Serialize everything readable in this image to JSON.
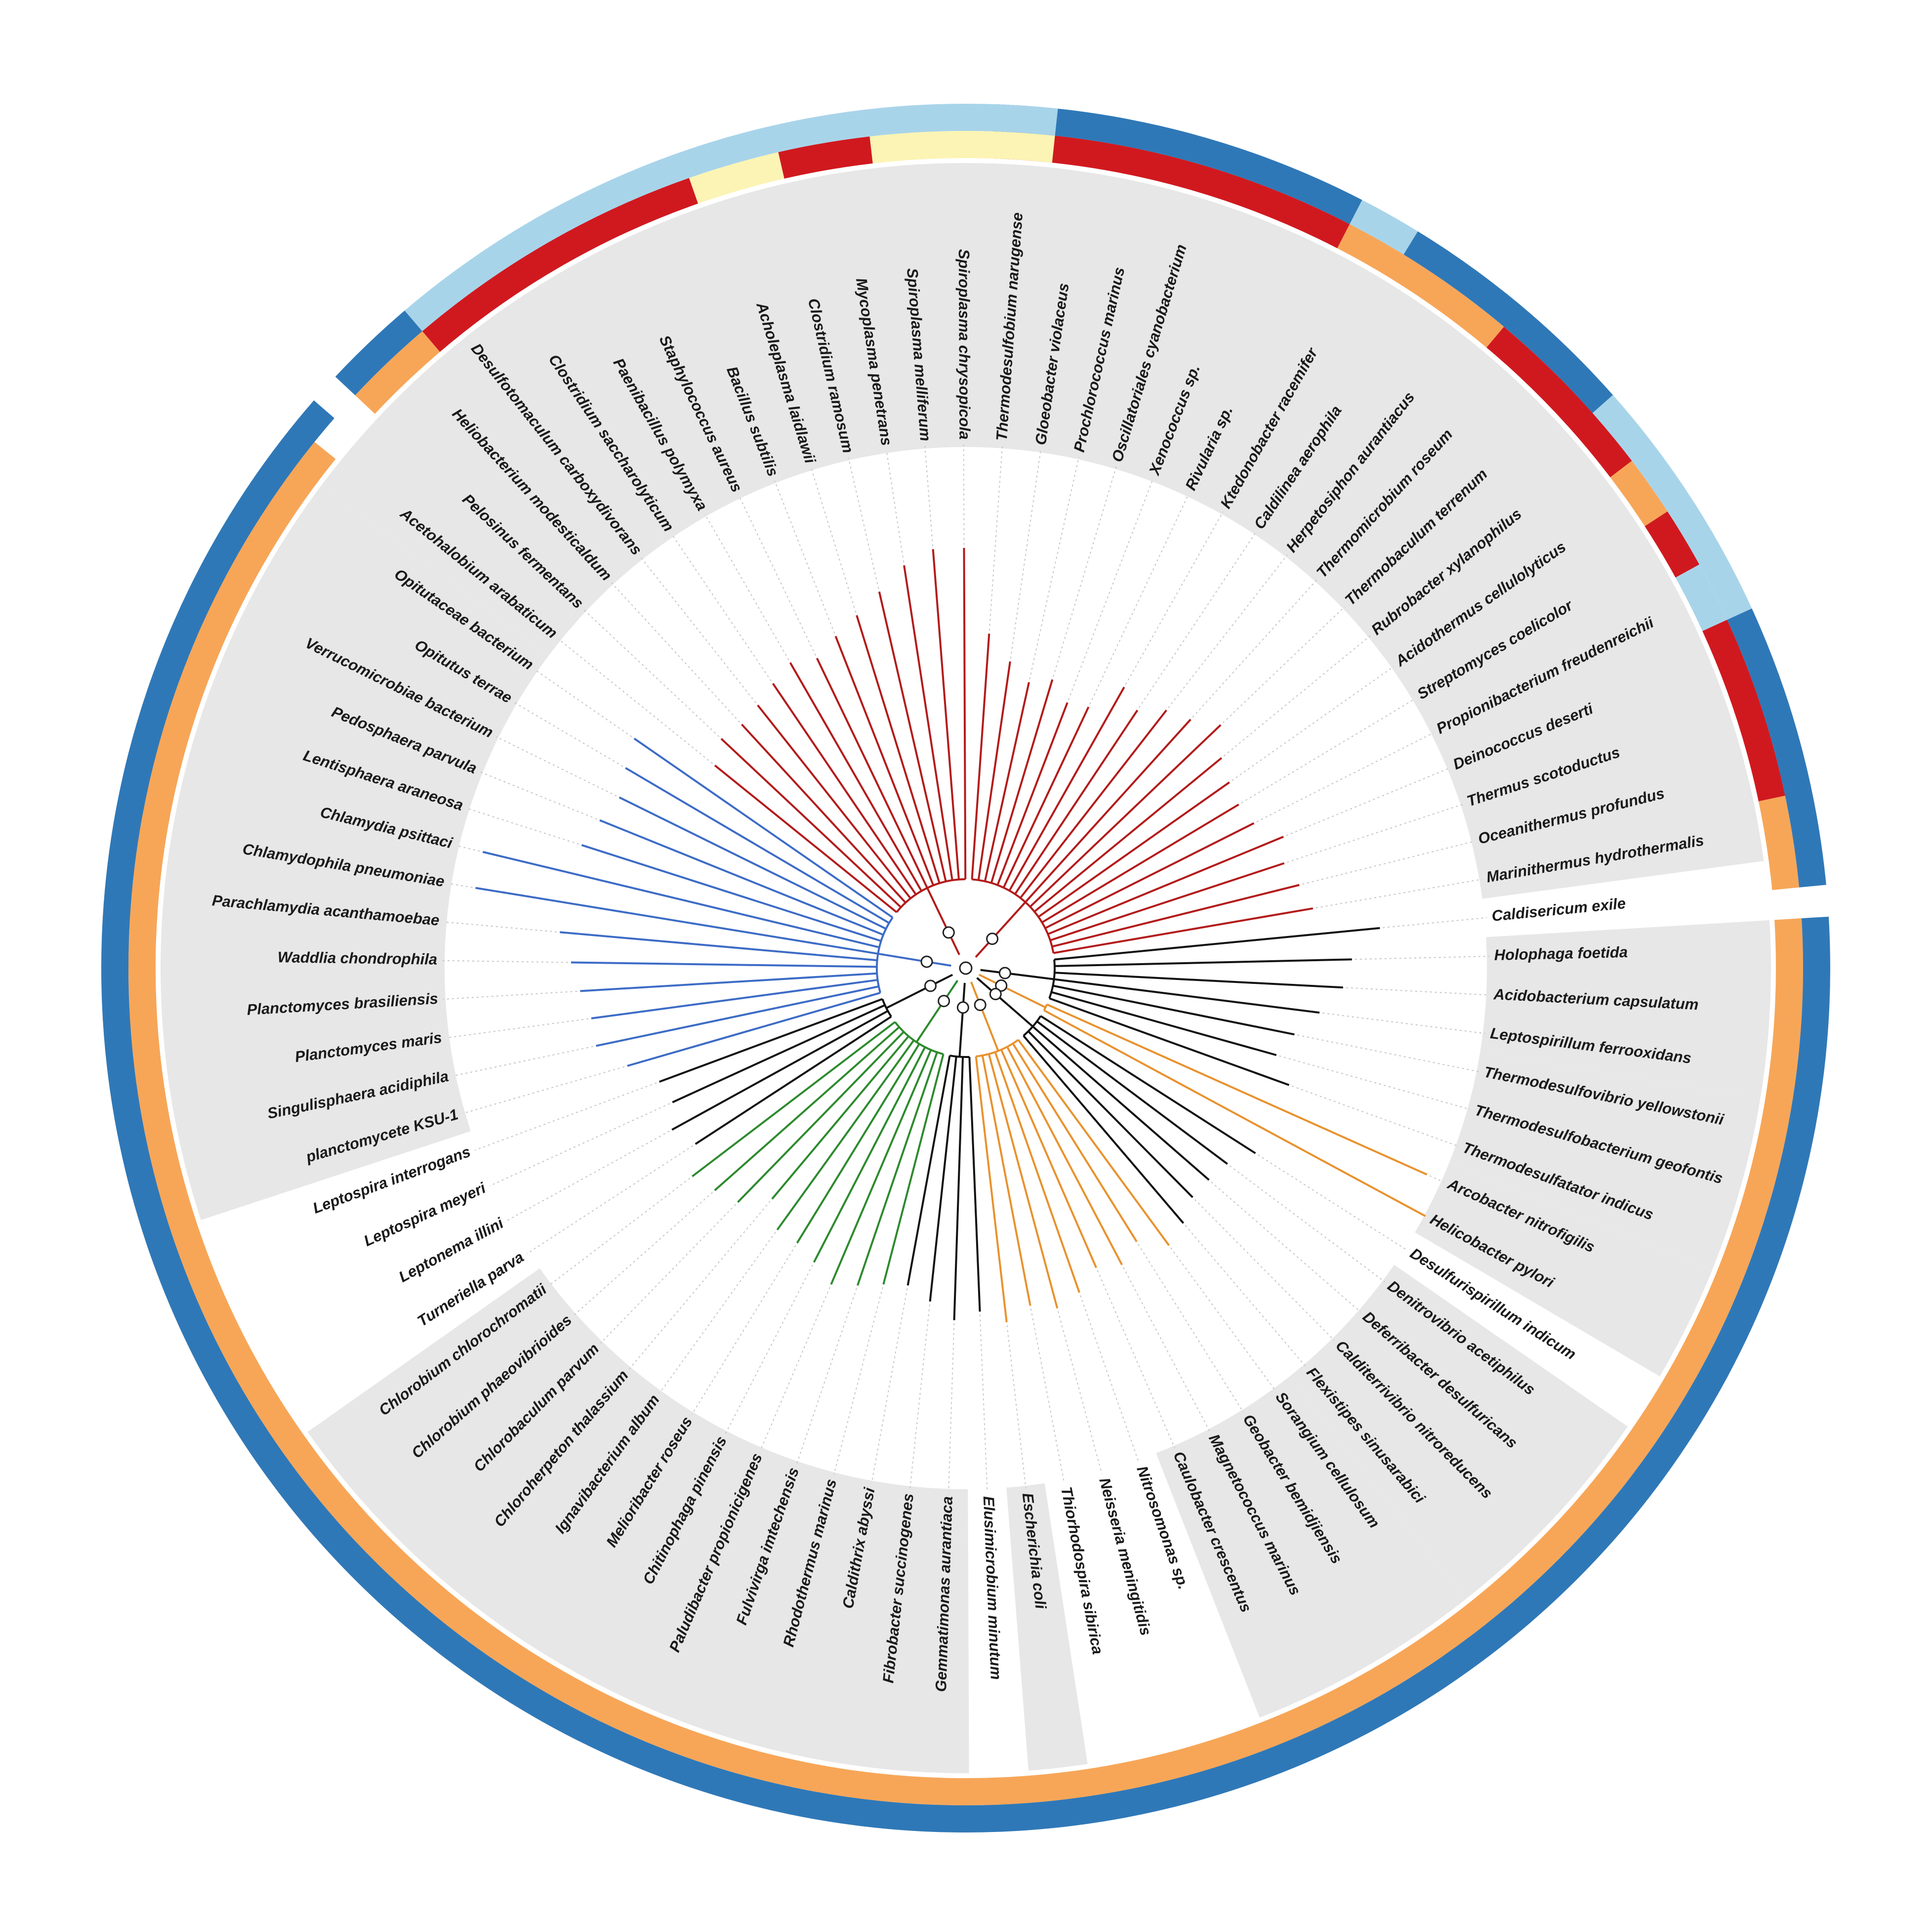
{
  "colors": {
    "background": "#ffffff",
    "group_shade": "#e7e7e7",
    "outer_ring": "#2f78b7",
    "ring_orange": "#f7a658",
    "ring_red": "#d0191f",
    "ring_lightblue": "#a8d4ea",
    "ring_yellow": "#fbf4b4",
    "dotted_leader": "#c6c6c6",
    "branch_red": "#b31b1b",
    "branch_blue": "#3d6cc6",
    "branch_green": "#2d8a2e",
    "branch_orange": "#e8922e",
    "branch_black": "#111111"
  },
  "taxa": [
    {
      "name": "Thermodesulfobium narugense",
      "color": "red",
      "len": 0.58
    },
    {
      "name": "Gloeobacter violaceus",
      "color": "red",
      "len": 0.52
    },
    {
      "name": "Prochlorococcus marinus",
      "color": "red",
      "len": 0.48
    },
    {
      "name": "Oscillatoriales cyanobacterium",
      "color": "red",
      "len": 0.5
    },
    {
      "name": "Xenococcus sp.",
      "color": "red",
      "len": 0.46
    },
    {
      "name": "Rivularia sp.",
      "color": "red",
      "len": 0.47
    },
    {
      "name": "Ktedonobacter racemifer",
      "color": "red",
      "len": 0.55
    },
    {
      "name": "Caldilinea aerophila",
      "color": "red",
      "len": 0.52
    },
    {
      "name": "Herpetosiphon aurantiacus",
      "color": "red",
      "len": 0.56
    },
    {
      "name": "Thermomicrobium roseum",
      "color": "red",
      "len": 0.58
    },
    {
      "name": "Thermobaculum terrenum",
      "color": "red",
      "len": 0.62
    },
    {
      "name": "Rubrobacter xylanophilus",
      "color": "red",
      "len": 0.57
    },
    {
      "name": "Acidothermus cellulolyticus",
      "color": "red",
      "len": 0.55
    },
    {
      "name": "Streptomyces coelicolor",
      "color": "red",
      "len": 0.54
    },
    {
      "name": "Propionibacterium freudenreichii",
      "color": "red",
      "len": 0.55
    },
    {
      "name": "Deinococcus deserti",
      "color": "red",
      "len": 0.6
    },
    {
      "name": "Thermus scotoductus",
      "color": "red",
      "len": 0.58
    },
    {
      "name": "Oceanithermus profundus",
      "color": "red",
      "len": 0.6
    },
    {
      "name": "Marinithermus hydrothermalis",
      "color": "red",
      "len": 0.62
    },
    {
      "name": "Caldisericum exile",
      "color": "black",
      "len": 0.77
    },
    {
      "name": "Holophaga foetida",
      "color": "black",
      "len": 0.7
    },
    {
      "name": "Acidobacterium capsulatum",
      "color": "black",
      "len": 0.68
    },
    {
      "name": "Leptospirillum ferrooxidans",
      "color": "black",
      "len": 0.63
    },
    {
      "name": "Thermodesulfovibrio yellowstonii",
      "color": "black",
      "len": 0.58
    },
    {
      "name": "Thermodesulfobacterium geofontis",
      "color": "black",
      "len": 0.55
    },
    {
      "name": "Thermodesulfatator indicus",
      "color": "black",
      "len": 0.6
    },
    {
      "name": "Arcobacter nitrofigilis",
      "color": "orange",
      "len": 0.98
    },
    {
      "name": "Helicobacter pylori",
      "color": "orange",
      "len": 1.02
    },
    {
      "name": "Desulfurispirillum indicum",
      "color": "black",
      "len": 0.6
    },
    {
      "name": "Denitrovibrio acetiphilus",
      "color": "black",
      "len": 0.56
    },
    {
      "name": "Deferribacter desulfuricans",
      "color": "black",
      "len": 0.55
    },
    {
      "name": "Calditerrivibrio nitroreducens",
      "color": "black",
      "len": 0.55
    },
    {
      "name": "Flexistipes sinusarabici",
      "color": "black",
      "len": 0.58
    },
    {
      "name": "Sorangium cellulosum",
      "color": "orange",
      "len": 0.6
    },
    {
      "name": "Geobacter bemidjiensis",
      "color": "orange",
      "len": 0.55
    },
    {
      "name": "Magnetococcus marinus",
      "color": "orange",
      "len": 0.58
    },
    {
      "name": "Caulobacter crescentus",
      "color": "orange",
      "len": 0.56
    },
    {
      "name": "Nitrosomonas sp.",
      "color": "orange",
      "len": 0.6
    },
    {
      "name": "Neisseria meningitidis",
      "color": "orange",
      "len": 0.62
    },
    {
      "name": "Thiorhodospira sibirica",
      "color": "orange",
      "len": 0.6
    },
    {
      "name": "Escherichia coli",
      "color": "orange",
      "len": 0.63
    },
    {
      "name": "Elusimicrobium minutum",
      "color": "black",
      "len": 0.6
    },
    {
      "name": "Gemmatimonas aurantiaca",
      "color": "black",
      "len": 0.62
    },
    {
      "name": "Fibrobacter succinogenes",
      "color": "black",
      "len": 0.58
    },
    {
      "name": "Caldithrix abyssi",
      "color": "black",
      "len": 0.55
    },
    {
      "name": "Rhodothermus marinus",
      "color": "green",
      "len": 0.56
    },
    {
      "name": "Fulvivirga imtechensis",
      "color": "green",
      "len": 0.58
    },
    {
      "name": "Paludibacter propionicigenes",
      "color": "green",
      "len": 0.6
    },
    {
      "name": "Chitinophaga pinensis",
      "color": "green",
      "len": 0.57
    },
    {
      "name": "Melioribacter roseus",
      "color": "green",
      "len": 0.55
    },
    {
      "name": "Ignavibacterium album",
      "color": "green",
      "len": 0.55
    },
    {
      "name": "Chloroherpeton thalassium",
      "color": "green",
      "len": 0.5
    },
    {
      "name": "Chlorobaculum parvum",
      "color": "green",
      "len": 0.56
    },
    {
      "name": "Chlorobium phaeovibrioides",
      "color": "green",
      "len": 0.58
    },
    {
      "name": "Chlorobium chlorochromatii",
      "color": "green",
      "len": 0.6
    },
    {
      "name": "Turneriella parva",
      "color": "black",
      "len": 0.55
    },
    {
      "name": "Leptonema illini",
      "color": "black",
      "len": 0.58
    },
    {
      "name": "Leptospira meyeri",
      "color": "black",
      "len": 0.55
    },
    {
      "name": "Leptospira interrogans",
      "color": "black",
      "len": 0.56
    },
    {
      "name": "planctomycete KSU-1",
      "color": "blue",
      "len": 0.62
    },
    {
      "name": "Singulisphaera acidiphila",
      "color": "blue",
      "len": 0.68
    },
    {
      "name": "Planctomyces maris",
      "color": "blue",
      "len": 0.68
    },
    {
      "name": "Planctomyces brasiliensis",
      "color": "blue",
      "len": 0.7
    },
    {
      "name": "Waddlia chondrophila",
      "color": "blue",
      "len": 0.72
    },
    {
      "name": "Parachlamydia acanthamoebae",
      "color": "blue",
      "len": 0.75
    },
    {
      "name": "Chlamydophila pneumoniae",
      "color": "blue",
      "len": 0.96
    },
    {
      "name": "Chlamydia psittaci",
      "color": "blue",
      "len": 0.96
    },
    {
      "name": "Lentisphaera araneosa",
      "color": "blue",
      "len": 0.74
    },
    {
      "name": "Pedosphaera parvula",
      "color": "blue",
      "len": 0.72
    },
    {
      "name": "Verrucomicrobiae bacterium",
      "color": "blue",
      "len": 0.7
    },
    {
      "name": "Opitutus terrae",
      "color": "blue",
      "len": 0.72
    },
    {
      "name": "Opitutaceae bacterium",
      "color": "blue",
      "len": 0.74
    },
    {
      "name": "Acetohalobium arabaticum",
      "color": "red",
      "len": 0.55
    },
    {
      "name": "Pelosinus fermentans",
      "color": "red",
      "len": 0.58
    },
    {
      "name": "Heliobacterium modesticaldum",
      "color": "red",
      "len": 0.57
    },
    {
      "name": "Desulfotomaculum carboxydivorans",
      "color": "red",
      "len": 0.58
    },
    {
      "name": "Clostridium saccharolyticum",
      "color": "red",
      "len": 0.6
    },
    {
      "name": "Paenibacillus polymyxa",
      "color": "red",
      "len": 0.62
    },
    {
      "name": "Staphylococcus aureus",
      "color": "red",
      "len": 0.6
    },
    {
      "name": "Bacillus subtilis",
      "color": "red",
      "len": 0.63
    },
    {
      "name": "Acholeplasma laidlawii",
      "color": "red",
      "len": 0.66
    },
    {
      "name": "Clostridium ramosum",
      "color": "red",
      "len": 0.7
    },
    {
      "name": "Mycoplasma penetrans",
      "color": "red",
      "len": 0.75
    },
    {
      "name": "Spiroplasma melliferum",
      "color": "red",
      "len": 0.78
    },
    {
      "name": "Spiroplasma chrysopicola",
      "color": "red",
      "len": 0.78
    }
  ],
  "inner_ring": [
    {
      "from": 0,
      "to": 6,
      "color": "red"
    },
    {
      "from": 6,
      "to": 9,
      "color": "orange"
    },
    {
      "from": 9,
      "to": 12,
      "color": "red"
    },
    {
      "from": 12,
      "to": 13,
      "color": "orange"
    },
    {
      "from": 13,
      "to": 14,
      "color": "red"
    },
    {
      "from": 14,
      "to": 15,
      "color": "lightblue"
    },
    {
      "from": 15,
      "to": 18,
      "color": "red"
    },
    {
      "from": 18,
      "to": 19.5,
      "color": "orange"
    },
    {
      "from": 20,
      "to": 72.5,
      "color": "orange"
    },
    {
      "from": 73.5,
      "to": 75,
      "color": "orange"
    },
    {
      "from": 75,
      "to": 80,
      "color": "red"
    },
    {
      "from": 80,
      "to": 81.5,
      "color": "yellow"
    },
    {
      "from": 81.5,
      "to": 83,
      "color": "red"
    },
    {
      "from": 83,
      "to": 86,
      "color": "yellow"
    }
  ],
  "outer_ring": [
    {
      "from": 0,
      "to": 6,
      "color": "blue"
    },
    {
      "from": 6,
      "to": 7,
      "color": "lightblue"
    },
    {
      "from": 7,
      "to": 11,
      "color": "blue"
    },
    {
      "from": 11,
      "to": 15,
      "color": "lightblue"
    },
    {
      "from": 15,
      "to": 19.5,
      "color": "blue"
    },
    {
      "from": 20,
      "to": 73,
      "color": "blue"
    },
    {
      "from": 73.5,
      "to": 75,
      "color": "blue"
    },
    {
      "from": 75,
      "to": 86,
      "color": "lightblue"
    }
  ],
  "shaded_groups": [
    {
      "from": 0,
      "to": 18
    },
    {
      "from": 20,
      "to": 22
    },
    {
      "from": 23,
      "to": 25
    },
    {
      "from": 26,
      "to": 27
    },
    {
      "from": 29,
      "to": 32
    },
    {
      "from": 33,
      "to": 36
    },
    {
      "from": 40,
      "to": 40
    },
    {
      "from": 42,
      "to": 54
    },
    {
      "from": 59,
      "to": 71
    },
    {
      "from": 72,
      "to": 85
    }
  ]
}
